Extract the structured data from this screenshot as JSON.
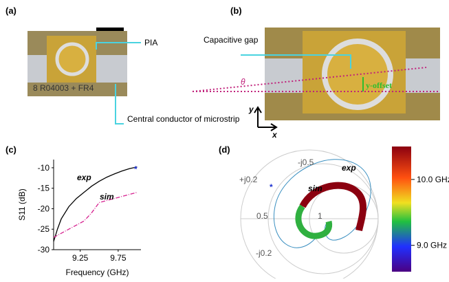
{
  "panels": {
    "a": {
      "label": "(a)",
      "pia": "PIA",
      "conductor": "Central conductor of microstrip",
      "board": "8 R04003 + FR4"
    },
    "b": {
      "label": "(b)",
      "gap": "Capacitive gap",
      "theta": "θ",
      "offset": "y-offset",
      "y_axis": "y",
      "x_axis": "x"
    },
    "d": {
      "label": "(d)",
      "exp": "exp",
      "sim": "sim",
      "star": "*",
      "smith_labels": [
        "-j0.5",
        "+j0.2",
        "0.5",
        "1",
        "-j0.2"
      ],
      "clim": [
        8.6,
        10.5
      ],
      "cticks": [
        {
          "value": 10.0,
          "label": "10.0 GHz"
        },
        {
          "value": 9.0,
          "label": "9.0 GHz"
        }
      ]
    }
  },
  "chart_data": {
    "type": "line",
    "label": "(c)",
    "x_label": "Frequency (GHz)",
    "y_label": "S11 (dB)",
    "x": [
      8.9,
      8.95,
      9.0,
      9.1,
      9.2,
      9.3,
      9.4,
      9.5,
      9.6,
      9.7,
      9.8,
      9.9,
      10.0
    ],
    "series": [
      {
        "name": "exp",
        "color": "#000000",
        "values": [
          -28,
          -25,
          -22.5,
          -19.5,
          -17.5,
          -16,
          -14.5,
          -13.3,
          -12.3,
          -11.5,
          -10.8,
          -10.2,
          -9.8
        ]
      },
      {
        "name": "sim",
        "color": "#d6208f",
        "values": [
          -27,
          -26.5,
          -26,
          -25,
          -24,
          -23,
          -21,
          -18.5,
          -18,
          -17.5,
          -17,
          -16.5,
          -16
        ]
      }
    ],
    "marker": "*",
    "xlim": [
      8.9,
      10.05
    ],
    "xticks": [
      9.25,
      9.75
    ],
    "ylim": [
      -30,
      -8
    ],
    "yticks": [
      -10,
      -15,
      -20,
      -25,
      -30
    ]
  }
}
